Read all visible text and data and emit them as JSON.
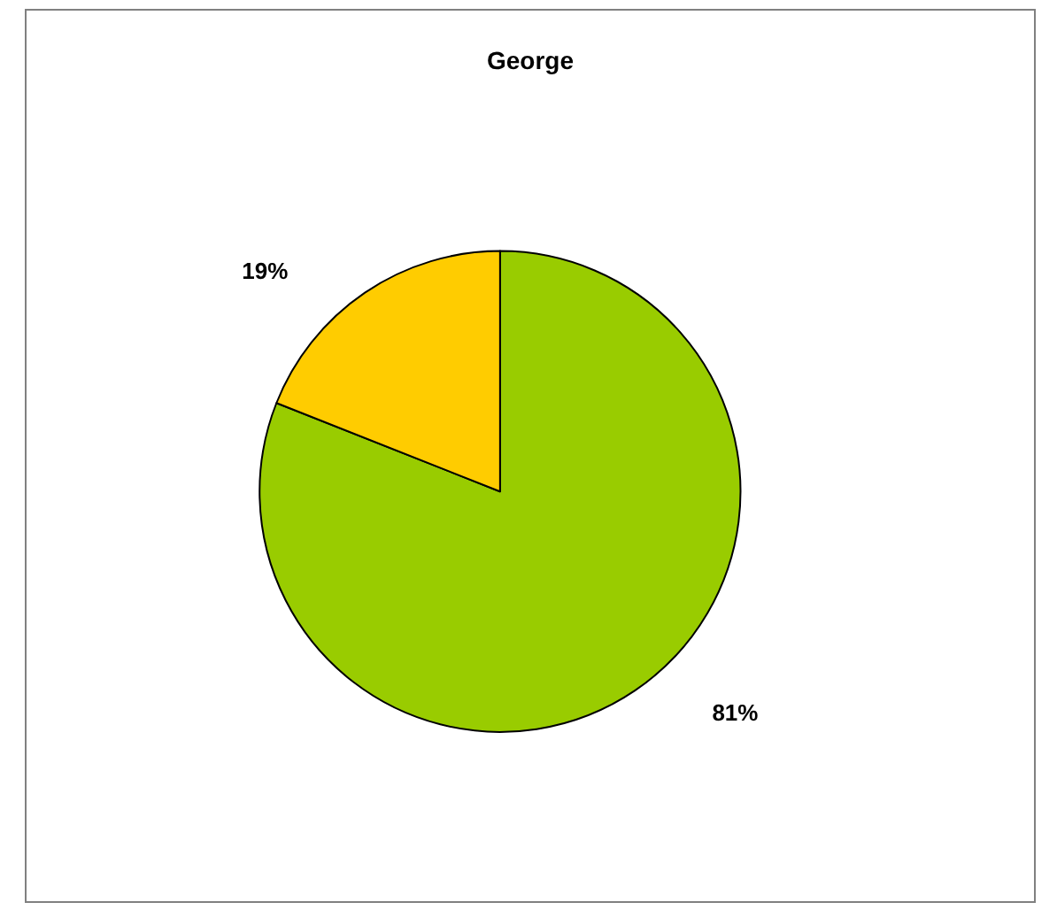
{
  "chart_data": {
    "type": "pie",
    "title": "George",
    "categories": [
      null,
      null
    ],
    "values": [
      81,
      19
    ],
    "colors": [
      "#99cc00",
      "#ffcc00"
    ],
    "value_labels": [
      "81%",
      "19%"
    ]
  }
}
